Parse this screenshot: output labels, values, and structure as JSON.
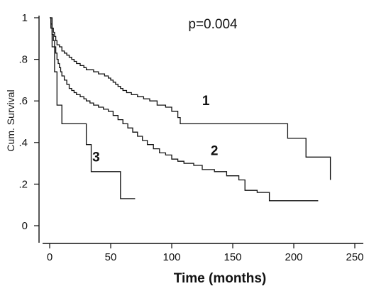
{
  "chart_data": {
    "type": "line",
    "xlabel": "Time (months)",
    "ylabel": "Cum. Survival",
    "xlim": [
      0,
      250
    ],
    "ylim": [
      0,
      1
    ],
    "xticks": [
      0,
      50,
      100,
      150,
      200,
      250
    ],
    "yticks": [
      0,
      0.2,
      0.4,
      0.6,
      0.8,
      1
    ],
    "ytick_labels": [
      "0",
      ".2",
      ".4",
      ".6",
      ".8",
      "1"
    ],
    "grid": false,
    "annotation": "p=0.004",
    "series": [
      {
        "name": "1",
        "step": true,
        "x": [
          0,
          1,
          2,
          3,
          4,
          5,
          6,
          8,
          10,
          12,
          14,
          16,
          18,
          20,
          22,
          25,
          28,
          30,
          33,
          36,
          40,
          45,
          48,
          50,
          52,
          54,
          56,
          58,
          60,
          63,
          67,
          72,
          77,
          82,
          88,
          95,
          100,
          105,
          107,
          120,
          140,
          160,
          180,
          195,
          200,
          205,
          210,
          220,
          225,
          230
        ],
        "y": [
          1.0,
          0.97,
          0.95,
          0.93,
          0.91,
          0.89,
          0.87,
          0.86,
          0.84,
          0.83,
          0.82,
          0.81,
          0.8,
          0.79,
          0.78,
          0.77,
          0.76,
          0.75,
          0.75,
          0.74,
          0.73,
          0.72,
          0.71,
          0.7,
          0.69,
          0.68,
          0.67,
          0.66,
          0.65,
          0.64,
          0.63,
          0.62,
          0.61,
          0.6,
          0.58,
          0.57,
          0.55,
          0.52,
          0.49,
          0.49,
          0.49,
          0.49,
          0.49,
          0.42,
          0.42,
          0.42,
          0.33,
          0.33,
          0.33,
          0.22
        ]
      },
      {
        "name": "2",
        "step": true,
        "x": [
          0,
          1,
          2,
          3,
          4,
          5,
          6,
          7,
          8,
          9,
          10,
          12,
          14,
          16,
          18,
          20,
          22,
          25,
          28,
          30,
          33,
          36,
          40,
          44,
          48,
          52,
          56,
          60,
          64,
          68,
          72,
          76,
          80,
          85,
          90,
          95,
          100,
          105,
          110,
          118,
          125,
          135,
          145,
          155,
          160,
          170,
          180,
          190,
          200,
          210,
          220
        ],
        "y": [
          1.0,
          0.95,
          0.92,
          0.89,
          0.86,
          0.83,
          0.8,
          0.78,
          0.76,
          0.74,
          0.72,
          0.7,
          0.68,
          0.66,
          0.65,
          0.64,
          0.63,
          0.62,
          0.61,
          0.6,
          0.59,
          0.58,
          0.57,
          0.56,
          0.55,
          0.53,
          0.51,
          0.49,
          0.47,
          0.45,
          0.43,
          0.41,
          0.39,
          0.37,
          0.35,
          0.34,
          0.32,
          0.31,
          0.3,
          0.29,
          0.27,
          0.26,
          0.24,
          0.22,
          0.17,
          0.16,
          0.12,
          0.12,
          0.12,
          0.12,
          0.12
        ]
      },
      {
        "name": "3",
        "step": true,
        "x": [
          0,
          2,
          4,
          6,
          10,
          20,
          30,
          34,
          45,
          58,
          62,
          70
        ],
        "y": [
          1.0,
          0.86,
          0.74,
          0.58,
          0.49,
          0.49,
          0.39,
          0.26,
          0.26,
          0.13,
          0.13,
          0.13
        ]
      }
    ]
  }
}
